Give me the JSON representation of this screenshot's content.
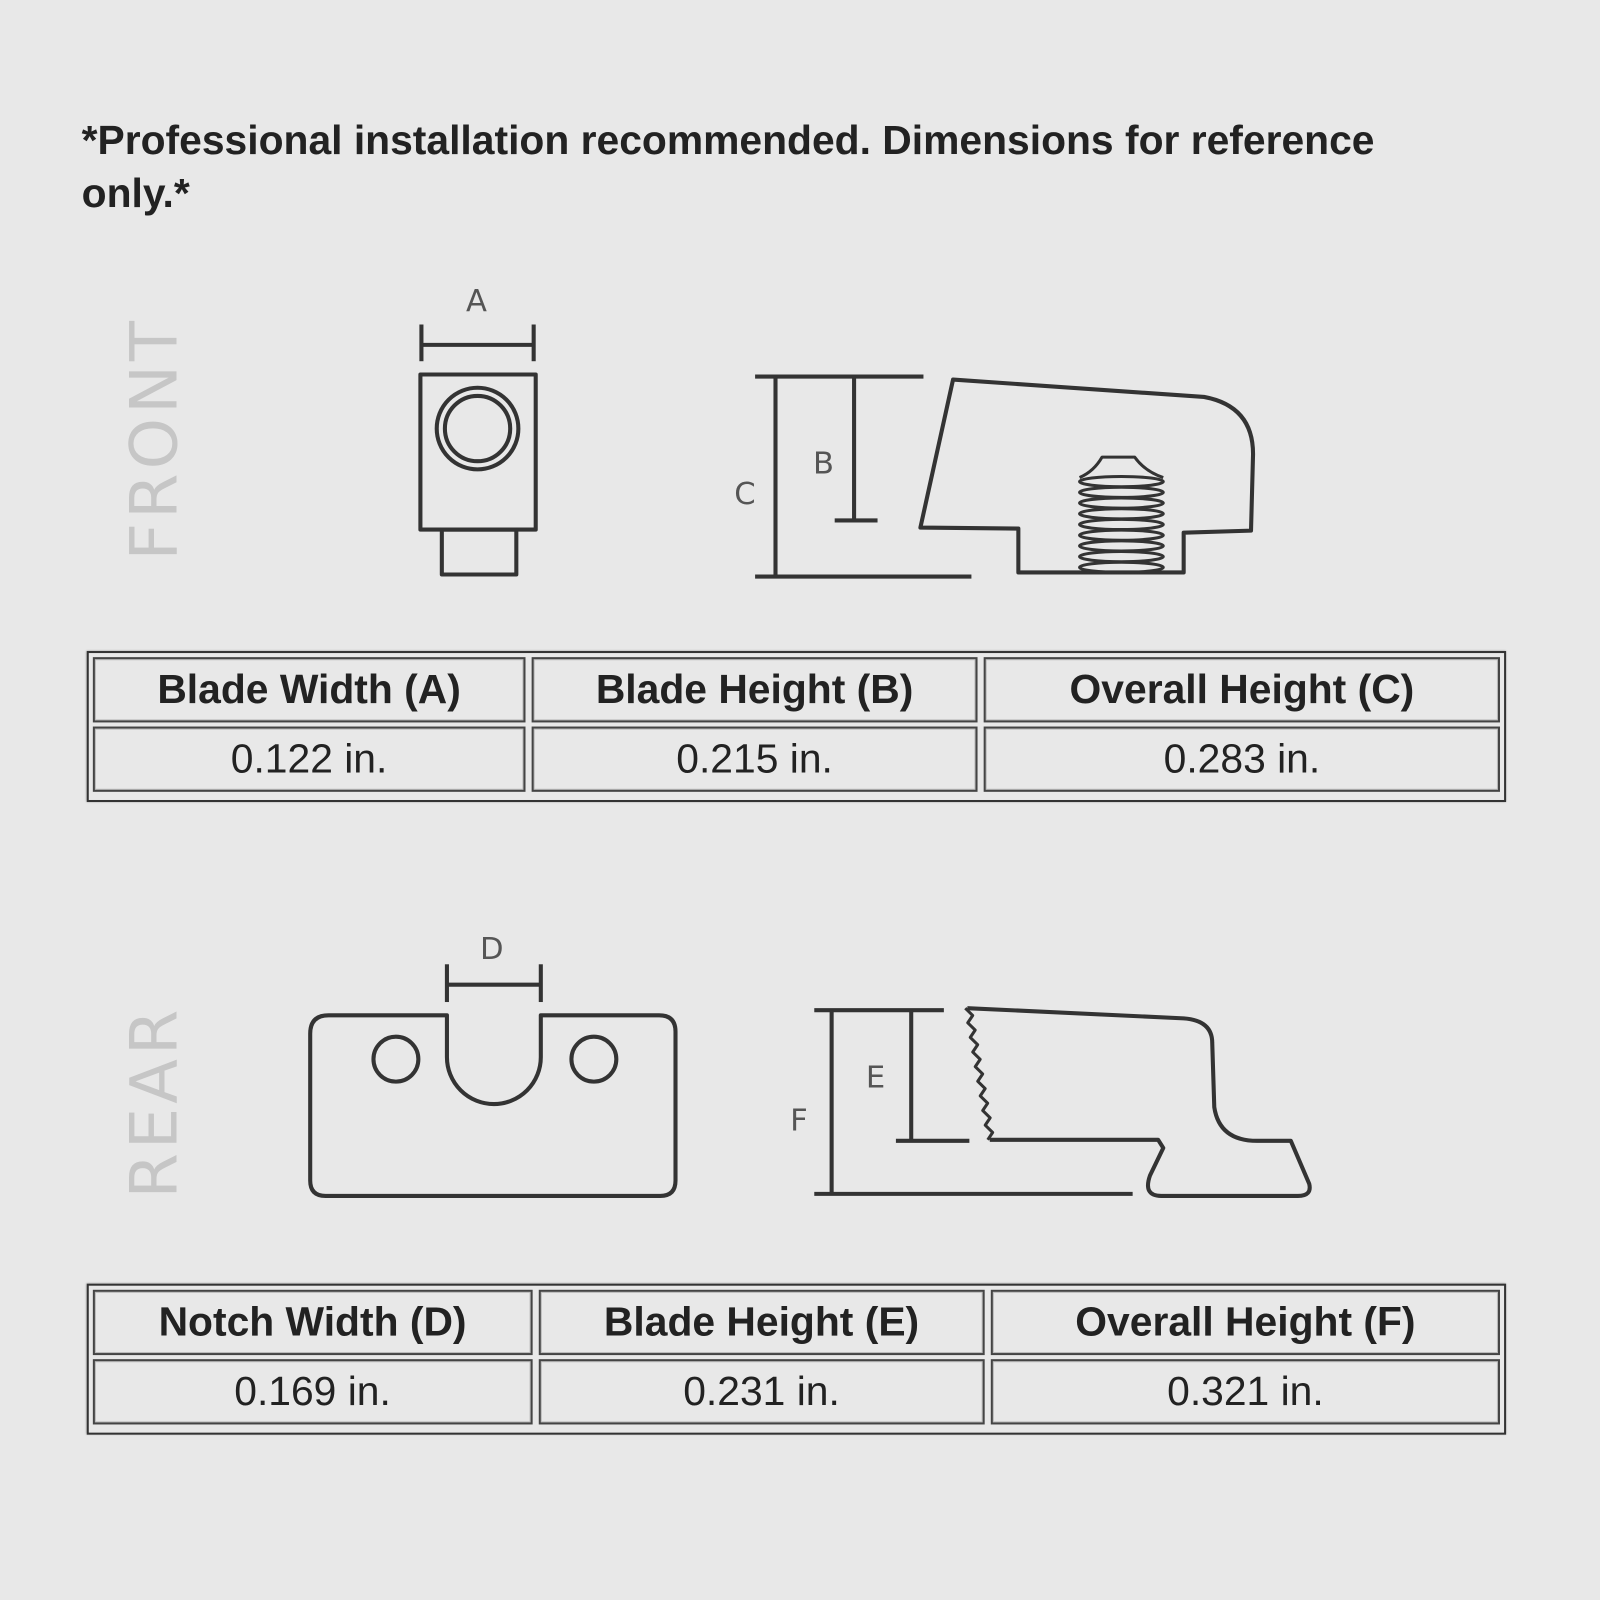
{
  "note": "*Professional installation recommended. Dimensions for reference only.*",
  "front": {
    "section_label": "FRONT",
    "dimension_labels": {
      "a": "A",
      "b": "B",
      "c": "C"
    },
    "table": {
      "headers": [
        "Blade Width (A)",
        "Blade Height (B)",
        "Overall Height (C)"
      ],
      "values": [
        "0.122 in.",
        "0.215 in.",
        "0.283 in."
      ]
    }
  },
  "rear": {
    "section_label": "REAR",
    "dimension_labels": {
      "d": "D",
      "e": "E",
      "f": "F"
    },
    "table": {
      "headers": [
        "Notch Width (D)",
        "Blade Height (E)",
        "Overall Height (F)"
      ],
      "values": [
        "0.169 in.",
        "0.231 in.",
        "0.321 in."
      ]
    }
  },
  "colors": {
    "background": "#e8e8e8",
    "line": "#333333",
    "section_label": "#c6c6c6"
  }
}
